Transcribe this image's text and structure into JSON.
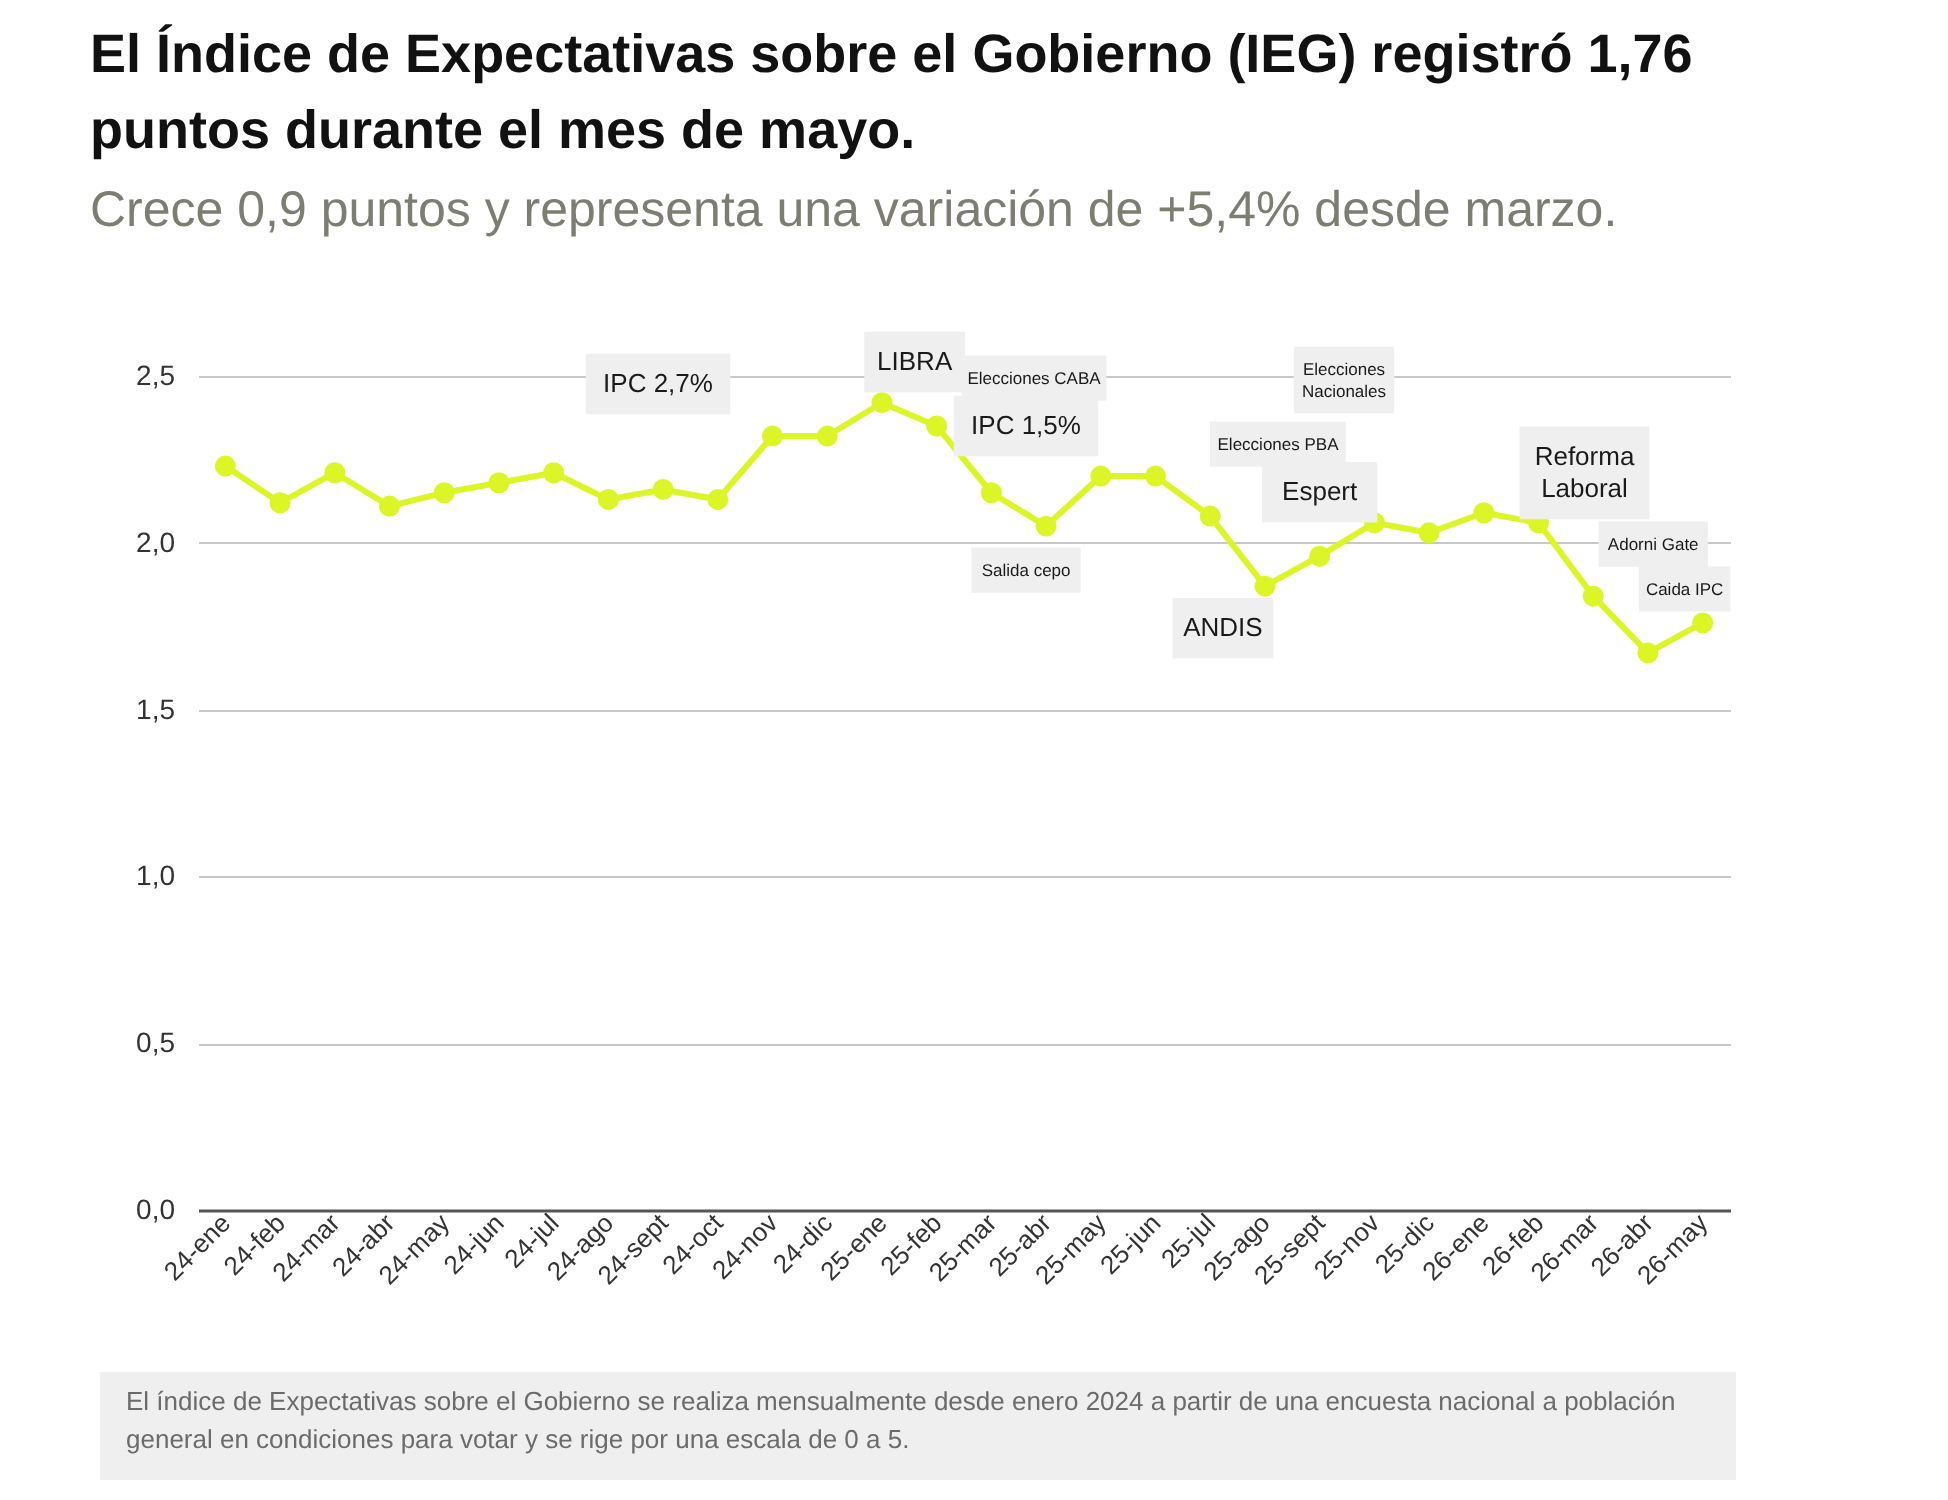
{
  "chart_data": {
    "type": "line",
    "title": "El Índice de Expectativas sobre el Gobierno (IEG) registró 1,76 puntos durante el mes de mayo.",
    "subtitle": "Crece 0,9 puntos y representa una variación de +5,4% desde marzo.",
    "categories": [
      "24-ene",
      "24-feb",
      "24-mar",
      "24-abr",
      "24-may",
      "24-jun",
      "24-jul",
      "24-ago",
      "24-sept",
      "24-oct",
      "24-nov",
      "24-dic",
      "25-ene",
      "25-feb",
      "25-mar",
      "25-abr",
      "25-may",
      "25-jun",
      "25-jul",
      "25-ago",
      "25-sept",
      "25-nov",
      "25-dic",
      "26-ene",
      "26-feb",
      "26-mar",
      "26-abr",
      "26-may"
    ],
    "series": [
      {
        "color": "#dcf526",
        "values": [
          2.23,
          2.12,
          2.21,
          2.11,
          2.15,
          2.18,
          2.21,
          2.13,
          2.16,
          2.13,
          2.32,
          2.32,
          2.42,
          2.35,
          2.15,
          2.05,
          2.2,
          2.2,
          2.08,
          1.87,
          1.96,
          2.06,
          2.03,
          2.09,
          2.06,
          1.84,
          1.67,
          1.76
        ]
      }
    ],
    "ylim": [
      0,
      2.5
    ],
    "yticks": [
      {
        "value": 0,
        "label": "0,0"
      },
      {
        "value": 0.5,
        "label": "0,5"
      },
      {
        "value": 1,
        "label": "1,0"
      },
      {
        "value": 1.5,
        "label": "1,5"
      },
      {
        "value": 2,
        "label": "2,0"
      },
      {
        "value": 2.5,
        "label": "2,5"
      }
    ],
    "grid": "y",
    "marker": "circle",
    "line_style": "solid",
    "annotations": [
      "IPC 2,7%",
      {
        "text": "LIBRA",
        "x": "25-feb",
        "y": 2.35
      },
      "Elecciones CABA",
      "IPC 1,5%",
      {
        "text": "Salida cepo",
        "x": "25-abr",
        "y": 2.05
      },
      {
        "text": "ANDIS",
        "x": "25-ago",
        "y": 1.87
      },
      "Elecciones PBA",
      "Elecciones\nNacionales",
      {
        "text": "Espert",
        "x": "25-sept",
        "y": 1.96
      },
      {
        "text": "Reforma\nLaboral",
        "x": "26-feb",
        "y": 2.06
      },
      {
        "text": "Adorni Gate",
        "x": "26-mar",
        "y": 1.84
      },
      {
        "text": "Caida IPC",
        "x": "26-may",
        "y": 1.76
      },
      "El índice de Expectativas sobre el Gobierno se realiza mensualmente desde enero 2024 a partir de una encuesta nacional a población general en condiciones para votar y se rige por una escala de 0 a 5."
    ]
  }
}
